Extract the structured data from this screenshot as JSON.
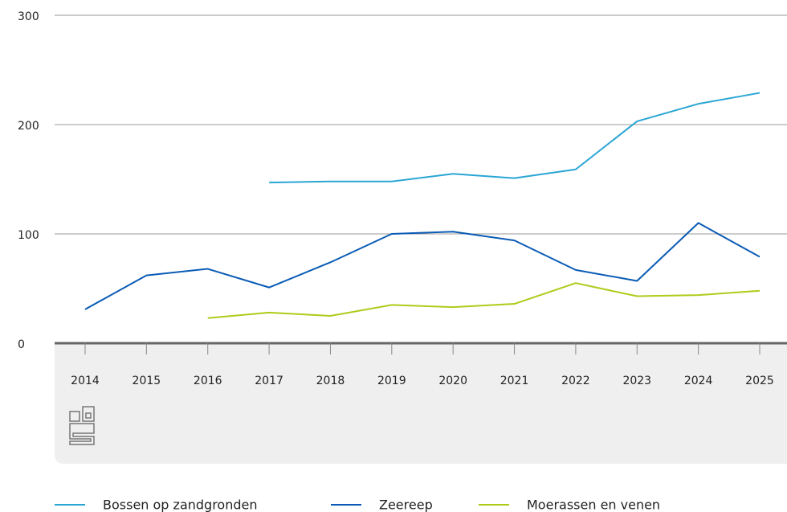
{
  "chart_data": {
    "type": "line",
    "categories": [
      "2014",
      "2015",
      "2016",
      "2017",
      "2018",
      "2019",
      "2020",
      "2021",
      "2022",
      "2023",
      "2024",
      "2025"
    ],
    "series": [
      {
        "name": "Bossen op zandgronden",
        "color": "#2aa6d4",
        "values": [
          null,
          null,
          null,
          147,
          148,
          148,
          155,
          151,
          159,
          203,
          219,
          229
        ]
      },
      {
        "name": "Zeereep",
        "color": "#0a5bb5",
        "values": [
          31,
          62,
          68,
          51,
          74,
          100,
          102,
          94,
          67,
          57,
          110,
          79
        ]
      },
      {
        "name": "Moerassen en venen",
        "color": "#afcb1a",
        "values": [
          null,
          null,
          23,
          28,
          25,
          35,
          33,
          36,
          55,
          43,
          44,
          48
        ]
      }
    ],
    "ylim": [
      0,
      300
    ],
    "yticks": [
      0,
      100,
      200,
      300
    ],
    "grid": true
  }
}
